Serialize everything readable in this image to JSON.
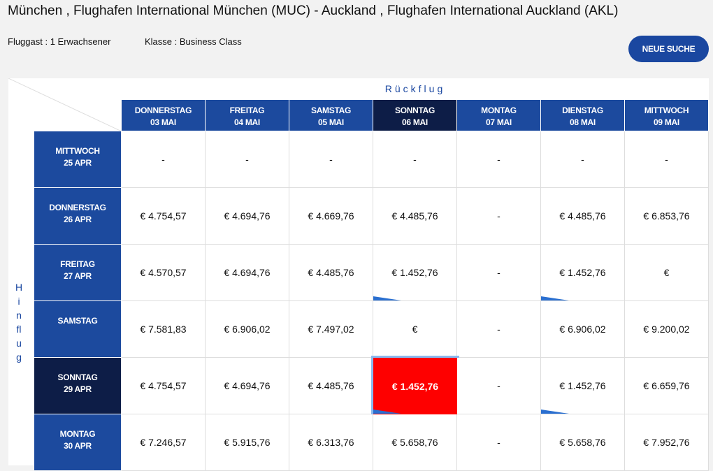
{
  "header": {
    "title": "München , Flughafen International München (MUC) - Auckland , Flughafen International Auckland (AKL)",
    "passengers": "Fluggast : 1 Erwachsener",
    "class": "Klasse : Business Class",
    "new_search": "NEUE SUCHE"
  },
  "matrix": {
    "return_label": "Rückflug",
    "outbound_label": "Hinflug",
    "columns": [
      {
        "day": "DONNERSTAG",
        "date": "03 MAI"
      },
      {
        "day": "FREITAG",
        "date": "04 MAI"
      },
      {
        "day": "SAMSTAG",
        "date": "05 MAI"
      },
      {
        "day": "SONNTAG",
        "date": "06 MAI"
      },
      {
        "day": "MONTAG",
        "date": "07 MAI"
      },
      {
        "day": "DIENSTAG",
        "date": "08 MAI"
      },
      {
        "day": "MITTWOCH",
        "date": "09 MAI"
      }
    ],
    "rows": [
      {
        "day": "MITTWOCH",
        "date": "25 APR",
        "cells": [
          "-",
          "-",
          "-",
          "-",
          "-",
          "-",
          "-"
        ]
      },
      {
        "day": "DONNERSTAG",
        "date": "26 APR",
        "cells": [
          "€ 4.754,57",
          "€ 4.694,76",
          "€ 4.669,76",
          "€ 4.485,76",
          "-",
          "€ 4.485,76",
          "€ 6.853,76"
        ]
      },
      {
        "day": "FREITAG",
        "date": "27 APR",
        "cells": [
          "€ 4.570,57",
          "€ 4.694,76",
          "€ 4.485,76",
          "€ 1.452,76",
          "-",
          "€ 1.452,76",
          "€"
        ]
      },
      {
        "day": "SAMSTAG",
        "cells": [
          "€ 7.581,83",
          "€ 6.906,02",
          "€ 7.497,02",
          "€",
          "-",
          "€ 6.906,02",
          "€ 9.200,02"
        ]
      },
      {
        "day": "SONNTAG",
        "date": "29 APR",
        "cells": [
          "€ 4.754,57",
          "€ 4.694,76",
          "€ 4.485,76",
          "€ 1.452,76",
          "-",
          "€ 1.452,76",
          "€ 6.659,76"
        ]
      },
      {
        "day": "MONTAG",
        "date": "30 APR",
        "cells": [
          "€ 7.246,57",
          "€ 5.915,76",
          "€ 6.313,76",
          "€ 5.658,76",
          "-",
          "€ 5.658,76",
          "€ 7.952,76"
        ]
      }
    ]
  }
}
